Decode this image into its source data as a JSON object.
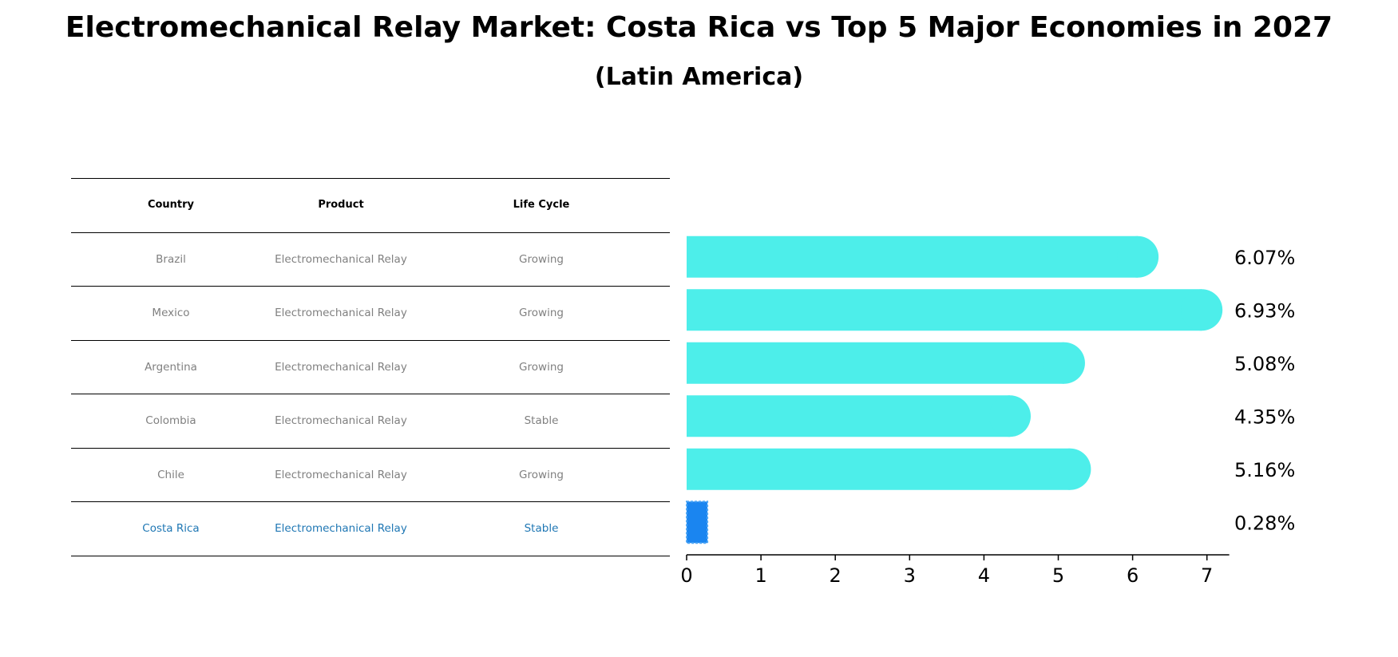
{
  "title": "Electromechanical Relay Market: Costa Rica vs Top 5 Major Economies in 2027",
  "subtitle": "(Latin America)",
  "table": {
    "headers": [
      "Country",
      "Product",
      "Life Cycle"
    ],
    "rows": [
      [
        "Brazil",
        "Electromechanical Relay",
        "Growing"
      ],
      [
        "Mexico",
        "Electromechanical Relay",
        "Growing"
      ],
      [
        "Argentina",
        "Electromechanical Relay",
        "Growing"
      ],
      [
        "Colombia",
        "Electromechanical Relay",
        "Stable"
      ],
      [
        "Chile",
        "Electromechanical Relay",
        "Growing"
      ],
      [
        "Costa Rica",
        "Electromechanical Relay",
        "Stable"
      ]
    ]
  },
  "colors": {
    "bar": "#4deeea",
    "highlight": "#1a85f0",
    "highlight_text": "#1f77b4",
    "muted_text": "#808080"
  },
  "chart_data": {
    "type": "bar",
    "orientation": "horizontal",
    "categories": [
      "Brazil",
      "Mexico",
      "Argentina",
      "Colombia",
      "Chile",
      "Costa Rica"
    ],
    "values": [
      6.07,
      6.93,
      5.08,
      4.35,
      5.16,
      0.28
    ],
    "value_labels": [
      "6.07%",
      "6.93%",
      "5.08%",
      "4.35%",
      "5.16%",
      "0.28%"
    ],
    "highlight": "Costa Rica",
    "xlim": [
      0,
      7.3
    ],
    "xticks": [
      0,
      1,
      2,
      3,
      4,
      5,
      6,
      7
    ],
    "grid": false
  }
}
